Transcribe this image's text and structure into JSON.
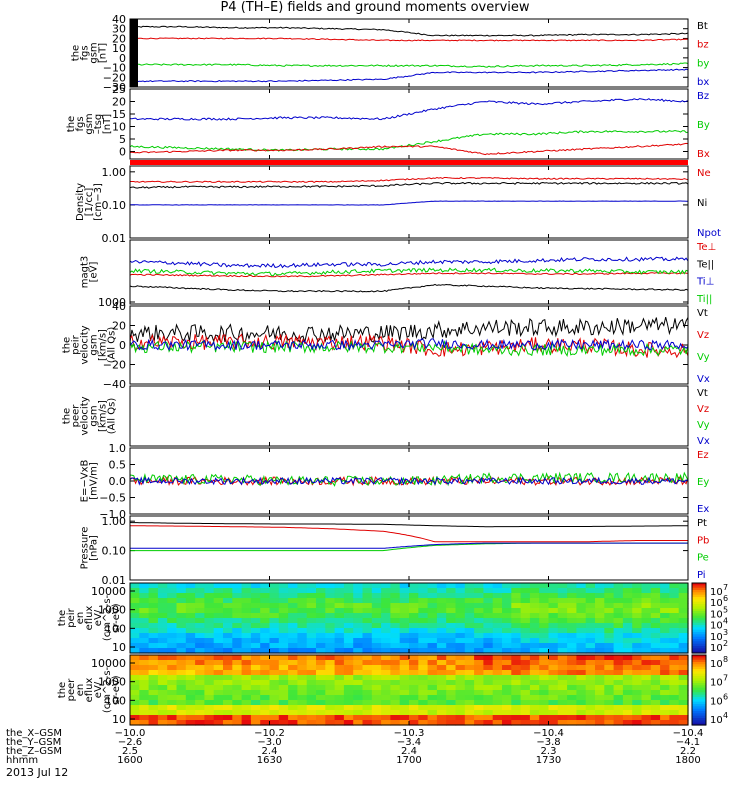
{
  "title": "P4 (TH–E) fields and ground moments overview",
  "date_label": "2013 Jul 12",
  "colors": {
    "black": "#000000",
    "red": "#e00000",
    "green": "#00cc00",
    "blue": "#0000cc"
  },
  "chart_data": [
    {
      "id": "p1",
      "type": "line",
      "ylabel": [
        "the",
        "fgs",
        "gsm",
        "[nT]"
      ],
      "ylim": [
        -30,
        40
      ],
      "yticks": [
        "40",
        "30",
        "20",
        "10",
        "0",
        "−10",
        "−20",
        "−30"
      ],
      "series": [
        {
          "name": "Bt",
          "color": "black",
          "noise": 0.6,
          "values": [
            32,
            32,
            31,
            31,
            30,
            29,
            23,
            23,
            23,
            24,
            24,
            25
          ]
        },
        {
          "name": "bz",
          "color": "red",
          "noise": 0.5,
          "values": [
            20,
            20,
            20,
            20,
            19,
            18,
            18,
            18,
            18,
            18,
            18,
            19
          ]
        },
        {
          "name": "by",
          "color": "green",
          "noise": 0.8,
          "values": [
            -7,
            -7,
            -7,
            -8,
            -8,
            -8,
            -8,
            -9,
            -8,
            -8,
            -7,
            -6
          ]
        },
        {
          "name": "bx",
          "color": "blue",
          "noise": 0.6,
          "values": [
            -24,
            -24,
            -24,
            -24,
            -23,
            -22,
            -15,
            -15,
            -15,
            -14,
            -13,
            -12
          ]
        }
      ]
    },
    {
      "id": "p2",
      "type": "line",
      "ylabel": [
        "the",
        "fgs",
        "gsm",
        "–tsg",
        "[nT]"
      ],
      "ylim": [
        -3,
        25
      ],
      "yticks": [
        "25",
        "20",
        "15",
        "10",
        "5",
        "0"
      ],
      "series": [
        {
          "name": "Bz",
          "color": "blue",
          "noise": 0.4,
          "values": [
            13,
            13,
            13,
            13.5,
            13.5,
            13,
            17,
            20,
            19,
            20,
            21,
            20
          ]
        },
        {
          "name": "By",
          "color": "green",
          "noise": 0.4,
          "values": [
            2,
            1.5,
            1,
            0.5,
            1,
            1,
            4,
            7,
            7,
            8,
            8,
            8
          ]
        },
        {
          "name": "Bx",
          "color": "red",
          "noise": 0.3,
          "values": [
            -0.5,
            0,
            0.5,
            0.5,
            1,
            2,
            2,
            -1,
            0,
            1,
            2,
            3
          ]
        }
      ]
    },
    {
      "id": "p3",
      "type": "line",
      "yscale": "log",
      "ylabel": [
        "Density",
        "[1/cc]",
        "[cm−3]"
      ],
      "ylim": [
        0.01,
        1.5
      ],
      "yticks": [
        "1.00",
        "0.10",
        "0.01"
      ],
      "series": [
        {
          "name": "Ne",
          "color": "red",
          "noise": 0.02,
          "values": [
            0.5,
            0.5,
            0.5,
            0.5,
            0.5,
            0.55,
            0.65,
            0.65,
            0.62,
            0.62,
            0.62,
            0.6
          ]
        },
        {
          "name": "Ni",
          "color": "black",
          "noise": 0.03,
          "values": [
            0.33,
            0.35,
            0.35,
            0.36,
            0.36,
            0.38,
            0.45,
            0.45,
            0.45,
            0.45,
            0.45,
            0.45
          ]
        },
        {
          "name": "Npot",
          "color": "blue",
          "noise": 0.005,
          "values": [
            0.1,
            0.1,
            0.1,
            0.1,
            0.1,
            0.1,
            0.13,
            0.13,
            0.13,
            0.13,
            0.13,
            0.13
          ]
        }
      ]
    },
    {
      "id": "p4",
      "type": "line",
      "ylabel": [
        "magt3",
        "[eV]"
      ],
      "ylim": [
        0,
        1
      ],
      "yticks": [
        "1000"
      ],
      "series": [
        {
          "name": "Te⊥",
          "color": "red",
          "noise": 0.01,
          "values": [
            0.46,
            0.45,
            0.44,
            0.43,
            0.44,
            0.46,
            0.48,
            0.48,
            0.47,
            0.47,
            0.48,
            0.48
          ]
        },
        {
          "name": "Te||",
          "color": "black",
          "noise": 0.01,
          "values": [
            0.28,
            0.25,
            0.22,
            0.2,
            0.2,
            0.2,
            0.3,
            0.28,
            0.25,
            0.24,
            0.23,
            0.22
          ]
        },
        {
          "name": "Ti⊥",
          "color": "blue",
          "noise": 0.03,
          "values": [
            0.66,
            0.64,
            0.6,
            0.6,
            0.62,
            0.62,
            0.66,
            0.66,
            0.68,
            0.7,
            0.7,
            0.7
          ]
        },
        {
          "name": "Ti||",
          "color": "green",
          "noise": 0.03,
          "values": [
            0.52,
            0.5,
            0.48,
            0.47,
            0.5,
            0.52,
            0.53,
            0.53,
            0.52,
            0.52,
            0.5,
            0.5
          ]
        }
      ]
    },
    {
      "id": "p5",
      "type": "line",
      "ylabel": [
        "the",
        "peir",
        "velocity",
        "gsm",
        "[km/s]",
        "(All Qs)"
      ],
      "ylim": [
        -40,
        40
      ],
      "yticks": [
        "40",
        "20",
        "0",
        "−20",
        "−40"
      ],
      "series": [
        {
          "name": "Vt",
          "color": "black",
          "noise": 9,
          "values": [
            12,
            12,
            12,
            12,
            12,
            12,
            15,
            18,
            18,
            18,
            20,
            20
          ]
        },
        {
          "name": "Vz",
          "color": "red",
          "noise": 8,
          "values": [
            3,
            3,
            3,
            3,
            3,
            3,
            -5,
            -3,
            0,
            0,
            -5,
            -5
          ]
        },
        {
          "name": "Vy",
          "color": "green",
          "noise": 6,
          "values": [
            -2,
            -2,
            -2,
            -2,
            -2,
            -2,
            -2,
            -5,
            -5,
            -5,
            -5,
            -5
          ]
        },
        {
          "name": "Vx",
          "color": "blue",
          "noise": 5,
          "values": [
            0,
            0,
            0,
            0,
            0,
            0,
            2,
            0,
            0,
            0,
            0,
            0
          ]
        }
      ]
    },
    {
      "id": "p6",
      "type": "line",
      "ylabel": [
        "the",
        "peer",
        "velocity",
        "gsm",
        "[km/s]",
        "(All Qs)"
      ],
      "ylim": [
        -40,
        40
      ],
      "yticks": [],
      "series": [
        {
          "name": "Vt",
          "color": "black",
          "values": []
        },
        {
          "name": "Vz",
          "color": "red",
          "values": []
        },
        {
          "name": "Vy",
          "color": "green",
          "values": []
        },
        {
          "name": "Vx",
          "color": "blue",
          "values": []
        }
      ]
    },
    {
      "id": "p7",
      "type": "line",
      "ylabel": [
        "E=−VxB",
        "[mV/m]"
      ],
      "ylim": [
        -1,
        1
      ],
      "yticks": [
        "1.0",
        "0.5",
        "0.0",
        "−0.5",
        "−1.0"
      ],
      "series": [
        {
          "name": "Ez",
          "color": "red",
          "noise": 0.12,
          "values": [
            0,
            0,
            0,
            0,
            0,
            0,
            0,
            0,
            0,
            0,
            0,
            0
          ]
        },
        {
          "name": "Ey",
          "color": "green",
          "noise": 0.15,
          "values": [
            0.05,
            0.05,
            0.05,
            0,
            0,
            0,
            0,
            0.1,
            0.1,
            0.1,
            0.1,
            0.1
          ]
        },
        {
          "name": "Ex",
          "color": "blue",
          "noise": 0.1,
          "values": [
            0,
            0,
            0,
            0,
            0,
            0,
            0,
            0,
            0,
            0,
            0,
            0
          ]
        }
      ]
    },
    {
      "id": "p8",
      "type": "line",
      "yscale": "log",
      "ylabel": [
        "Pressure",
        "[nPa]"
      ],
      "ylim": [
        0.01,
        1.5
      ],
      "yticks": [
        "1.00",
        "0.10",
        "0.01"
      ],
      "series": [
        {
          "name": "Pt",
          "color": "black",
          "noise": 0,
          "values": [
            0.9,
            0.85,
            0.82,
            0.8,
            0.8,
            0.78,
            0.7,
            0.65,
            0.66,
            0.66,
            0.68,
            0.7
          ]
        },
        {
          "name": "Pb",
          "color": "red",
          "noise": 0,
          "values": [
            0.7,
            0.68,
            0.65,
            0.62,
            0.55,
            0.45,
            0.2,
            0.2,
            0.2,
            0.2,
            0.22,
            0.22
          ]
        },
        {
          "name": "Pe",
          "color": "green",
          "noise": 0,
          "values": [
            0.1,
            0.1,
            0.1,
            0.1,
            0.1,
            0.1,
            0.15,
            0.17,
            0.18,
            0.18,
            0.18,
            0.18
          ]
        },
        {
          "name": "Pi",
          "color": "blue",
          "noise": 0,
          "values": [
            0.12,
            0.12,
            0.12,
            0.12,
            0.12,
            0.12,
            0.16,
            0.18,
            0.18,
            0.18,
            0.18,
            0.18
          ]
        }
      ]
    },
    {
      "id": "p9",
      "type": "heatmap",
      "yscale": "log",
      "ylabel": [
        "the",
        "peir",
        "en",
        "eflux",
        "eV/",
        "(cm^2-s-",
        "sr-eV)"
      ],
      "yticks": [
        "10000",
        "1000",
        "100",
        "10"
      ],
      "colorbar_ticks": [
        "10",
        "10",
        "10",
        "10",
        "10",
        "10"
      ],
      "colorbar_exps": [
        "7",
        "6",
        "5",
        "4",
        "3",
        "2"
      ]
    },
    {
      "id": "p10",
      "type": "heatmap",
      "yscale": "log",
      "ylabel": [
        "the",
        "peer",
        "en",
        "eflux",
        "eV/",
        "(cm^2-s-",
        "sr-eV)"
      ],
      "yticks": [
        "10000",
        "1000",
        "100",
        "10"
      ],
      "colorbar_ticks": [
        "10",
        "10",
        "10",
        "10"
      ],
      "colorbar_exps": [
        "8",
        "7",
        "6",
        "4"
      ]
    }
  ],
  "xaxis": {
    "rows": [
      {
        "label": "the_X–GSM",
        "values": [
          "−10.0",
          "−10.2",
          "−10.3",
          "−10.4",
          "−10.4"
        ]
      },
      {
        "label": "the_Y–GSM",
        "values": [
          "−2.6",
          "−3.0",
          "−3.4",
          "−3.8",
          "−4.1"
        ]
      },
      {
        "label": "the_Z–GSM",
        "values": [
          "2.5",
          "2.4",
          "2.4",
          "2.3",
          "2.2"
        ]
      },
      {
        "label": "hhmm",
        "values": [
          "1600",
          "1630",
          "1700",
          "1730",
          "1800"
        ]
      }
    ]
  }
}
